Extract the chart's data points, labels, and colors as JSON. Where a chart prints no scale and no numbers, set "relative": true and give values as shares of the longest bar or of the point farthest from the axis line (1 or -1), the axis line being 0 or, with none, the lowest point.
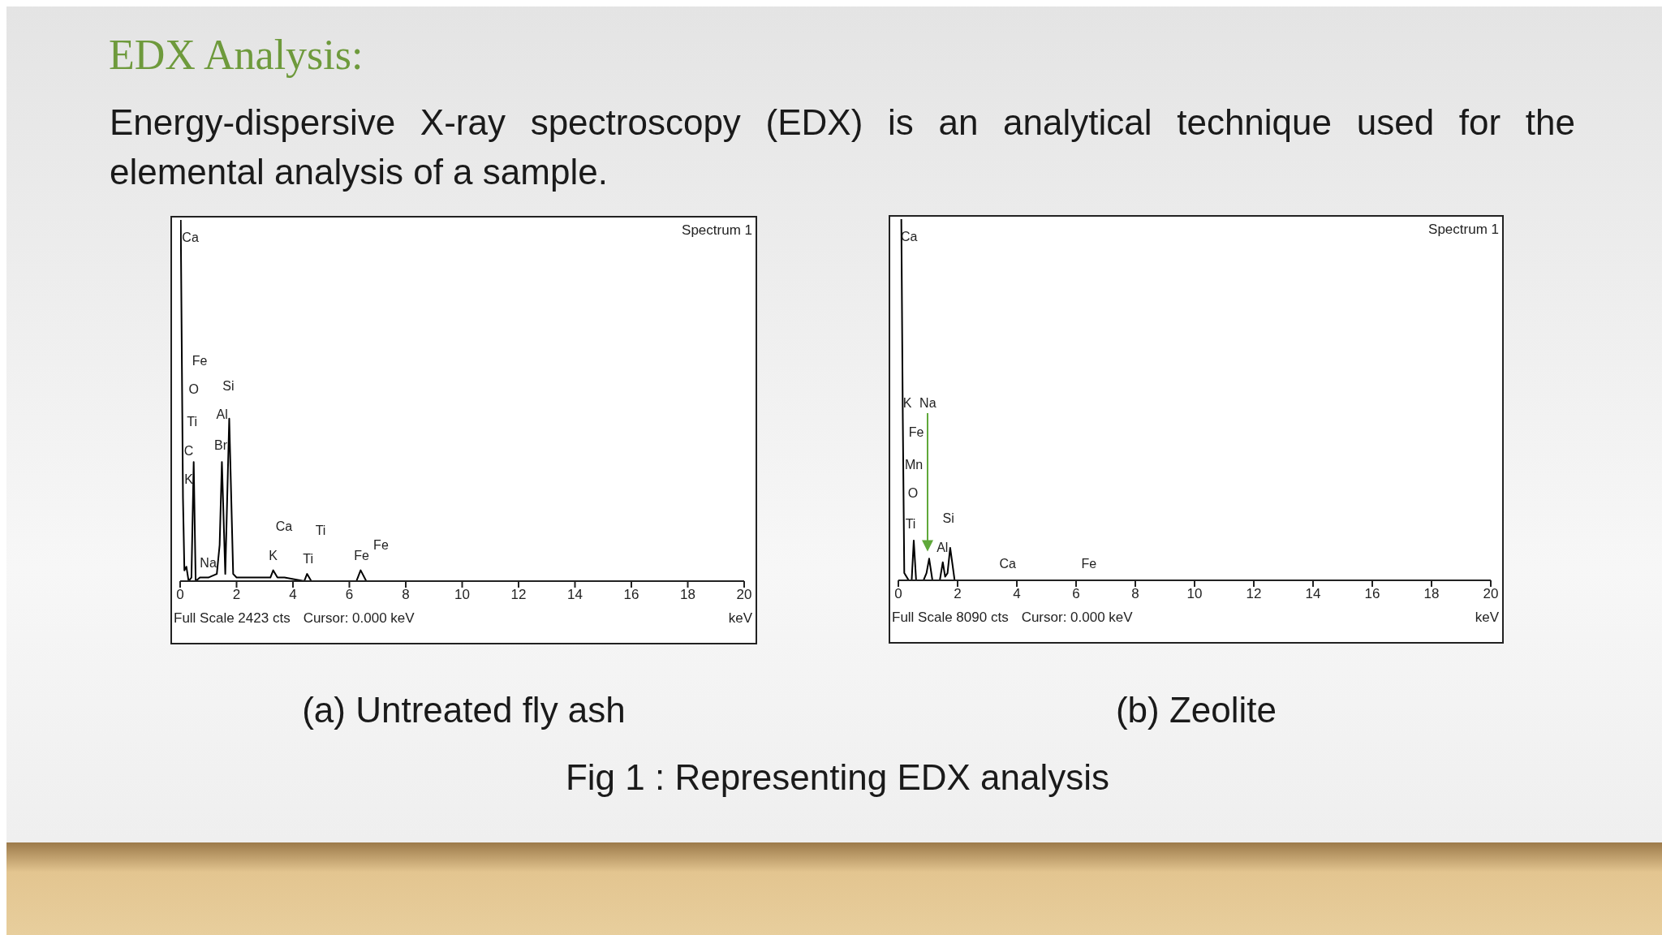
{
  "chart_data": [
    {
      "type": "line",
      "title": "EDX Analysis:",
      "subtitle": "Energy-dispersive X-ray spectroscopy (EDX) is an analytical technique used for the elemental analysis of a sample.",
      "relative": true,
      "xlabel": "keV",
      "xlim": [
        0,
        20
      ],
      "xticks": [
        0,
        2,
        4,
        6,
        8,
        10,
        12,
        14,
        16,
        18,
        20
      ],
      "tick_labels": "x",
      "marker": "none",
      "series": [
        {
          "color": "#000000",
          "x": [
            0.02,
            0.1,
            0.15,
            0.22,
            0.3,
            0.4,
            0.48,
            0.55,
            0.7,
            1.0,
            1.3,
            1.4,
            1.48,
            1.6,
            1.74,
            1.88,
            2.0,
            3.2,
            3.3,
            3.45,
            3.7,
            4.4,
            4.5,
            4.65,
            6.25,
            6.4,
            6.6,
            10,
            20
          ],
          "values": [
            1,
            0.23,
            0.03,
            0.04,
            0,
            0.01,
            0.33,
            0,
            0.01,
            0.01,
            0.02,
            0.1,
            0.33,
            0.02,
            0.45,
            0.02,
            0.01,
            0.01,
            0.03,
            0.01,
            0.01,
            0,
            0.02,
            0,
            0,
            0.03,
            0,
            0,
            0
          ]
        }
      ],
      "annotations": [
        "Spectrum 1",
        "Full Scale 2423 cts",
        "Cursor: 0.000 keV",
        "(a) Untreated fly ash",
        "Fig 1 : Representing EDX analysis",
        "Ca",
        "Fe",
        "O",
        "Ti",
        "C",
        "K",
        "Si",
        "Al",
        "Br",
        "Na",
        "Ca",
        "K",
        "Ti",
        "Ti",
        "Fe",
        "Fe"
      ]
    },
    {
      "type": "line",
      "relative": true,
      "xlabel": "keV",
      "xlim": [
        0,
        20
      ],
      "xticks": [
        0,
        2,
        4,
        6,
        8,
        10,
        12,
        14,
        16,
        18,
        20
      ],
      "tick_labels": "x",
      "marker": "none",
      "series": [
        {
          "color": "#000000",
          "x": [
            0.1,
            0.15,
            0.2,
            0.35,
            0.45,
            0.52,
            0.6,
            0.85,
            0.95,
            1.04,
            1.15,
            1.4,
            1.5,
            1.58,
            1.66,
            1.75,
            1.9,
            3.7,
            4.5,
            6.4,
            20
          ],
          "values": [
            1,
            0.45,
            0.02,
            0,
            0,
            0.11,
            0,
            0,
            0.02,
            0.06,
            0,
            0,
            0.05,
            0.01,
            0.02,
            0.09,
            0,
            0,
            0,
            0,
            0
          ]
        }
      ],
      "annotations": [
        "Spectrum 1",
        "Full Scale 8090 cts",
        "Cursor: 0.000 keV",
        "(b) Zeolite",
        "Ca",
        "K",
        "Na",
        "Fe",
        "Mn",
        "O",
        "Ti",
        "Si",
        "Al",
        "Ca",
        "Fe"
      ]
    }
  ]
}
